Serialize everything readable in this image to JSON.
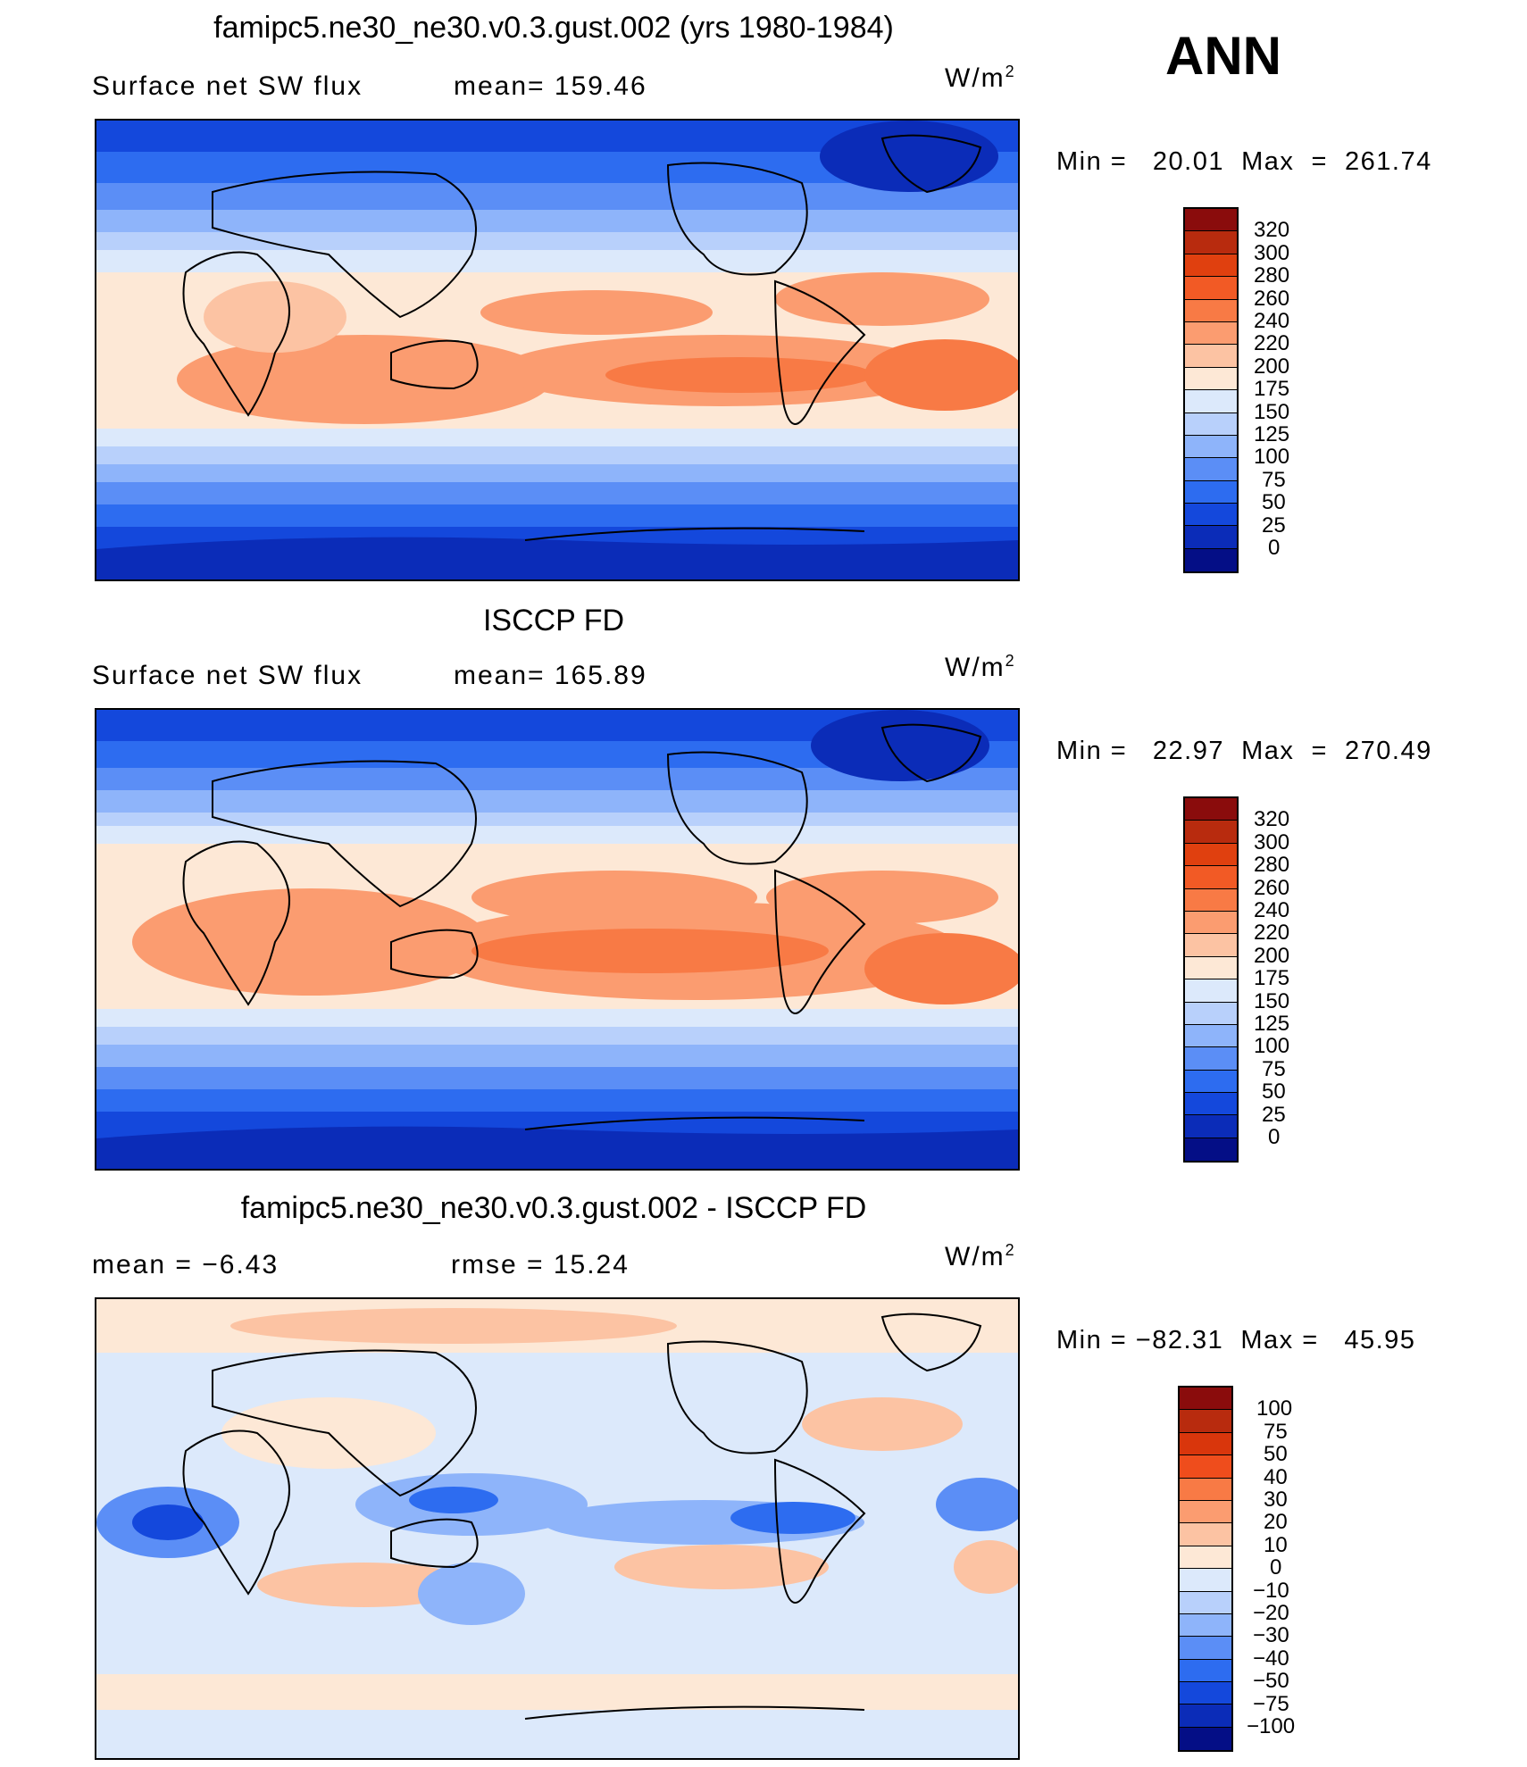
{
  "header": {
    "panel1_title": "famipc5.ne30_ne30.v0.3.gust.002 (yrs 1980-1984)",
    "season": "ANN"
  },
  "panels": [
    {
      "title": "famipc5.ne30_ne30.v0.3.gust.002 (yrs 1980-1984)",
      "left_label": "Surface net SW flux",
      "center_label": "mean= 159.46",
      "units": "W/m",
      "units_sup": "2",
      "minmax": "Min =   20.01  Max  =  261.74",
      "colorbar_ticks": [
        "320",
        "300",
        "280",
        "260",
        "240",
        "220",
        "200",
        "175",
        "150",
        "125",
        "100",
        "75",
        "50",
        "25",
        "0"
      ],
      "colorbar_colors": [
        "#8a0c0c",
        "#b82b0e",
        "#e0400f",
        "#f25a25",
        "#f87a45",
        "#fb9c70",
        "#fcc3a3",
        "#fde8d6",
        "#dce9fb",
        "#b8d0fb",
        "#8eb4fa",
        "#5b8ef6",
        "#2d6cf0",
        "#1448dc",
        "#0b2cb8",
        "#040e86"
      ],
      "min_value": 20.01,
      "max_value": 261.74,
      "mean": 159.46
    },
    {
      "title": "ISCCP FD",
      "left_label": "Surface net SW flux",
      "center_label": "mean= 165.89",
      "units": "W/m",
      "units_sup": "2",
      "minmax": "Min =   22.97  Max  =  270.49",
      "colorbar_ticks": [
        "320",
        "300",
        "280",
        "260",
        "240",
        "220",
        "200",
        "175",
        "150",
        "125",
        "100",
        "75",
        "50",
        "25",
        "0"
      ],
      "colorbar_colors": [
        "#8a0c0c",
        "#b82b0e",
        "#e0400f",
        "#f25a25",
        "#f87a45",
        "#fb9c70",
        "#fcc3a3",
        "#fde8d6",
        "#dce9fb",
        "#b8d0fb",
        "#8eb4fa",
        "#5b8ef6",
        "#2d6cf0",
        "#1448dc",
        "#0b2cb8",
        "#040e86"
      ],
      "min_value": 22.97,
      "max_value": 270.49,
      "mean": 165.89
    },
    {
      "title": "famipc5.ne30_ne30.v0.3.gust.002 - ISCCP FD",
      "left_label": "mean =   −6.43",
      "center_label": "rmse =   15.24",
      "units": "W/m",
      "units_sup": "2",
      "minmax": "Min = −82.31  Max =   45.95",
      "colorbar_ticks": [
        "100",
        "75",
        "50",
        "40",
        "30",
        "20",
        "10",
        "0",
        "−10",
        "−20",
        "−30",
        "−40",
        "−50",
        "−75",
        "−100"
      ],
      "colorbar_colors": [
        "#8a0c0c",
        "#b82b0e",
        "#d9360c",
        "#ef4d1c",
        "#f87a45",
        "#fb9c70",
        "#fcc3a3",
        "#fde8d6",
        "#dce9fb",
        "#b8d0fb",
        "#8eb4fa",
        "#5b8ef6",
        "#2d6cf0",
        "#1448dc",
        "#0b2cb8",
        "#040e86"
      ],
      "min_value": -82.31,
      "max_value": 45.95,
      "mean": -6.43,
      "rmse": 15.24
    }
  ]
}
